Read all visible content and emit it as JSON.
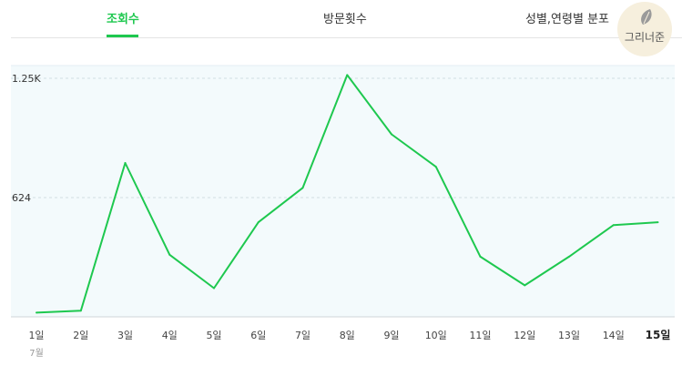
{
  "tabs": [
    {
      "label": "조회수",
      "active": true
    },
    {
      "label": "방문횟수",
      "active": false
    },
    {
      "label": "성별,연령별 분포",
      "active": false
    }
  ],
  "logo": {
    "text": "그리너준",
    "icon": "leaf-icon"
  },
  "colors": {
    "accent": "#1ec84f",
    "line": "#1ec84f",
    "plot_background": "#f3fafc"
  },
  "chart_data": {
    "type": "line",
    "categories": [
      "1일",
      "2일",
      "3일",
      "4일",
      "5일",
      "6일",
      "7일",
      "8일",
      "9일",
      "10일",
      "11일",
      "12일",
      "13일",
      "14일",
      "15일"
    ],
    "series": [
      {
        "values": [
          22,
          32,
          805,
          325,
          150,
          495,
          675,
          1265,
          955,
          785,
          315,
          165,
          315,
          480,
          495
        ]
      }
    ],
    "y_ticks": [
      {
        "value": 1248,
        "label": "1.25K"
      },
      {
        "value": 624,
        "label": "624"
      }
    ],
    "ylim": [
      0,
      1248
    ],
    "month_label": "7월",
    "highlighted_category": "15일",
    "grid": true
  }
}
